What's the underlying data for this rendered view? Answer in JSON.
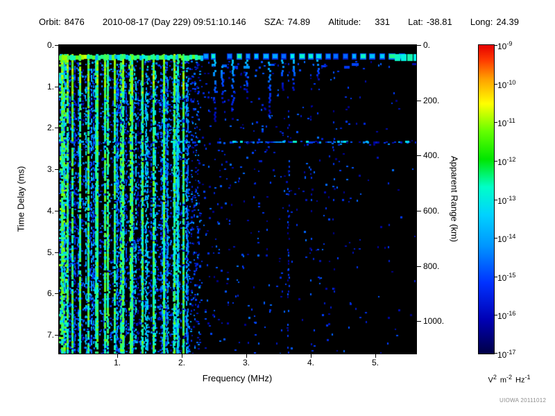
{
  "header": {
    "orbit_label": "Orbit:",
    "orbit_value": "8476",
    "datetime": "2010-08-17 (Day 229) 09:51:10.146",
    "sza_label": "SZA:",
    "sza_value": "74.89",
    "altitude_label": "Altitude:",
    "altitude_value": "331",
    "lat_label": "Lat:",
    "lat_value": "-38.81",
    "long_label": "Long:",
    "long_value": "24.39"
  },
  "watermark": "UIOWA 20111012",
  "chart_data": {
    "type": "heatmap",
    "title": "",
    "xlabel": "Frequency (MHz)",
    "ylabel_left": "Time Delay (ms)",
    "ylabel_right": "Apparent Range (km)",
    "x_range_mhz": [
      0.1,
      5.63
    ],
    "y_range_ms": [
      0,
      7.45
    ],
    "x_tick_labels": [
      "1.",
      "2.",
      "3.",
      "4.",
      "5."
    ],
    "y_tick_labels": [
      "0.",
      "1.",
      "2.",
      "3.",
      "4.",
      "5.",
      "6.",
      "7."
    ],
    "right_tick_labels": [
      "0.",
      "200.",
      "400.",
      "600.",
      "800.",
      "1000."
    ],
    "colorbar": {
      "base": "10",
      "ticks": [
        "-9",
        "-10",
        "-11",
        "-12",
        "-13",
        "-14",
        "-15",
        "-16",
        "-17"
      ],
      "unit": {
        "v": "V",
        "v_exp": "2",
        "m": "m",
        "m_exp": "-2",
        "hz": "Hz",
        "hz_exp": "-1"
      },
      "min_value": "1e-17",
      "max_value": "1e-9"
    },
    "features": {
      "seed": 20111012,
      "surface_band_delay_ms": 0.3,
      "noise_region_max_freq_mhz": 2.15,
      "strong_stripe_freqs_mhz": [
        0.14,
        0.22,
        0.3,
        0.42,
        0.55,
        0.68,
        0.8,
        0.95,
        1.08,
        1.22,
        1.38,
        1.55,
        1.72,
        1.88,
        2.02
      ],
      "horizontal_line_delay_ms": 2.33,
      "echo_streaks": [
        {
          "f_mhz": 2.5,
          "to_ms": 1.9
        },
        {
          "f_mhz": 2.62,
          "to_ms": 1.5
        },
        {
          "f_mhz": 2.78,
          "to_ms": 1.8
        },
        {
          "f_mhz": 3.0,
          "to_ms": 1.3
        },
        {
          "f_mhz": 3.35,
          "to_ms": 1.7
        },
        {
          "f_mhz": 3.55,
          "to_ms": 1.1
        },
        {
          "f_mhz": 3.72,
          "to_ms": 1.2
        },
        {
          "f_mhz": 4.1,
          "to_ms": 0.9
        }
      ],
      "dotted_vertical_columns": [
        {
          "f_mhz": 3.65,
          "p": 0.3
        },
        {
          "f_mhz": 4.0,
          "p": 0.22
        },
        {
          "f_mhz": 4.35,
          "p": 0.14
        },
        {
          "f_mhz": 5.2,
          "p": 0.1
        }
      ]
    }
  }
}
